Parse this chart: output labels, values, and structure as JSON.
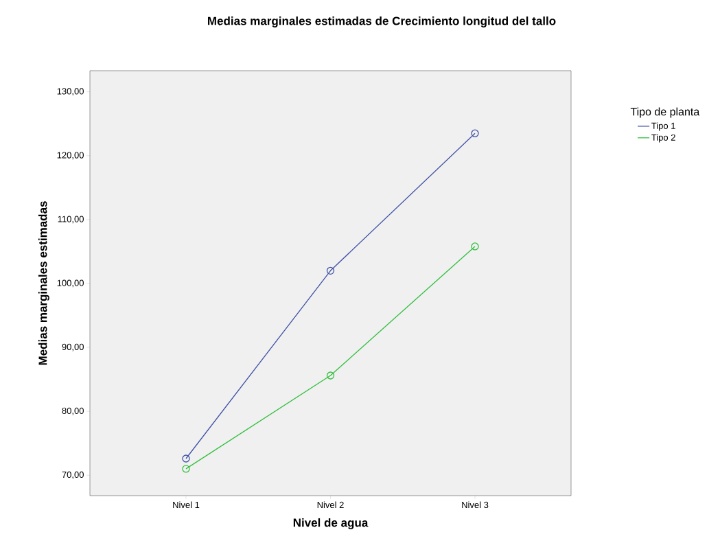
{
  "chart_data": {
    "type": "line",
    "title": "Medias marginales estimadas de Crecimiento longitud del tallo",
    "xlabel": "Nivel de agua",
    "ylabel": "Medias marginales estimadas",
    "legend_title": "Tipo de planta",
    "categories": [
      "Nivel 1",
      "Nivel 2",
      "Nivel 3"
    ],
    "series": [
      {
        "name": "Tipo 1",
        "color": "#3f51a6",
        "values": [
          72.6,
          102.0,
          123.5
        ]
      },
      {
        "name": "Tipo 2",
        "color": "#2fbf3c",
        "values": [
          71.0,
          85.6,
          105.8
        ]
      }
    ],
    "ylim": [
      66.8,
      133.3
    ],
    "yticks": [
      {
        "value": 70,
        "label": "70,00"
      },
      {
        "value": 80,
        "label": "80,00"
      },
      {
        "value": 90,
        "label": "90,00"
      },
      {
        "value": 100,
        "label": "100,00"
      },
      {
        "value": 110,
        "label": "110,00"
      },
      {
        "value": 120,
        "label": "120,00"
      },
      {
        "value": 130,
        "label": "130,00"
      }
    ],
    "grid": false,
    "legend": "top right",
    "marker": "circle",
    "line_style": "solid"
  }
}
